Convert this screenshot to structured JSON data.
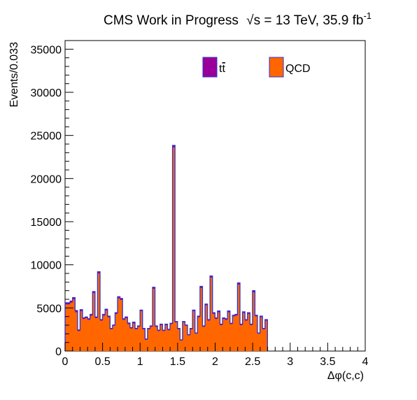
{
  "header": {
    "experiment": "CMS Work in Progress",
    "sqrt_s": "s",
    "energy_lumi": " = 13 TeV, 35.9 fb",
    "lumi_exponent": "-1"
  },
  "legend": {
    "position": "top-right",
    "entries": [
      {
        "label": "t",
        "label_suffix": "t",
        "color": "#990099"
      },
      {
        "label": "QCD",
        "color": "#ff6600"
      }
    ]
  },
  "colors": {
    "qcd_fill": "#ff6600",
    "ttbar_fill": "#990099",
    "ttbar_line": "#3333cc"
  },
  "chart_data": {
    "type": "bar",
    "stacked": true,
    "xlabel": "Δφ(c,c)",
    "ylabel": "Events/0.033",
    "xlim": [
      0,
      4
    ],
    "ylim": [
      0,
      36000
    ],
    "bin_width": 0.0333,
    "x_tick_labels": [
      "0",
      "0.5",
      "1",
      "1.5",
      "2",
      "2.5",
      "3",
      "3.5",
      "4"
    ],
    "y_tick_labels": [
      "0",
      "5000",
      "10000",
      "15000",
      "20000",
      "25000",
      "30000",
      "35000"
    ],
    "y_ticks": [
      0,
      5000,
      10000,
      15000,
      20000,
      25000,
      30000,
      35000
    ],
    "series": [
      {
        "name": "QCD",
        "values": [
          5400,
          5400,
          5600,
          6000,
          4500,
          2300,
          4600,
          3700,
          3800,
          3600,
          4100,
          6700,
          3800,
          9000,
          3500,
          4100,
          4700,
          3900,
          2500,
          2900,
          4300,
          6100,
          5900,
          3600,
          3800,
          3100,
          2600,
          3200,
          2500,
          2800,
          4600,
          2500,
          1300,
          2500,
          2800,
          7200,
          2800,
          2300,
          3000,
          2300,
          3000,
          2400,
          3100,
          23600,
          3300,
          2500,
          1200,
          3300,
          2900,
          1800,
          2500,
          4600,
          2000,
          3900,
          7300,
          2800,
          5300,
          3500,
          8500,
          4300,
          3700,
          4500,
          3000,
          3700,
          3600,
          4500,
          3100,
          4000,
          4100,
          7700,
          3000,
          4400,
          3500,
          4300,
          3000,
          6800,
          4000,
          2000,
          3900,
          2500,
          3500
        ]
      },
      {
        "name": "t",
        "values": [
          200,
          200,
          200,
          200,
          200,
          150,
          200,
          150,
          150,
          150,
          150,
          200,
          150,
          200,
          150,
          150,
          150,
          150,
          120,
          120,
          150,
          200,
          200,
          150,
          150,
          150,
          120,
          150,
          120,
          120,
          150,
          120,
          100,
          120,
          120,
          200,
          120,
          120,
          120,
          120,
          120,
          120,
          120,
          250,
          120,
          120,
          100,
          120,
          120,
          100,
          120,
          150,
          100,
          150,
          200,
          120,
          150,
          150,
          200,
          150,
          150,
          150,
          120,
          150,
          150,
          150,
          120,
          150,
          150,
          200,
          120,
          150,
          150,
          150,
          120,
          200,
          150,
          100,
          150,
          120,
          150
        ]
      }
    ]
  }
}
